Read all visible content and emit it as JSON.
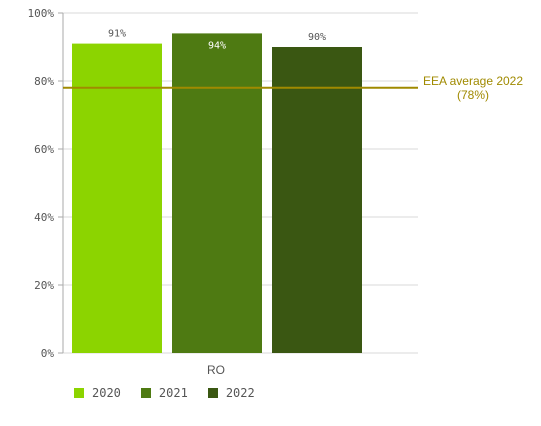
{
  "chart_data": {
    "type": "bar",
    "categories": [
      "RO"
    ],
    "series": [
      {
        "name": "2020",
        "values": [
          91
        ],
        "label": "91%",
        "color": "#8cd400",
        "label_color": "#555555"
      },
      {
        "name": "2021",
        "values": [
          94
        ],
        "label": "94%",
        "color": "#4e7a12",
        "label_color": "#ffffff"
      },
      {
        "name": "2022",
        "values": [
          90
        ],
        "label": "90%",
        "color": "#3a5712",
        "label_color": "#555555"
      }
    ],
    "y_ticks": [
      "0%",
      "20%",
      "40%",
      "60%",
      "80%",
      "100%"
    ],
    "ylim": [
      0,
      100
    ],
    "grid": true,
    "legend_position": "bottom-left",
    "reference_line": {
      "value": 78,
      "label_line1": "EEA average 2022",
      "label_line2": "(78%)",
      "color": "#a08a00"
    }
  }
}
